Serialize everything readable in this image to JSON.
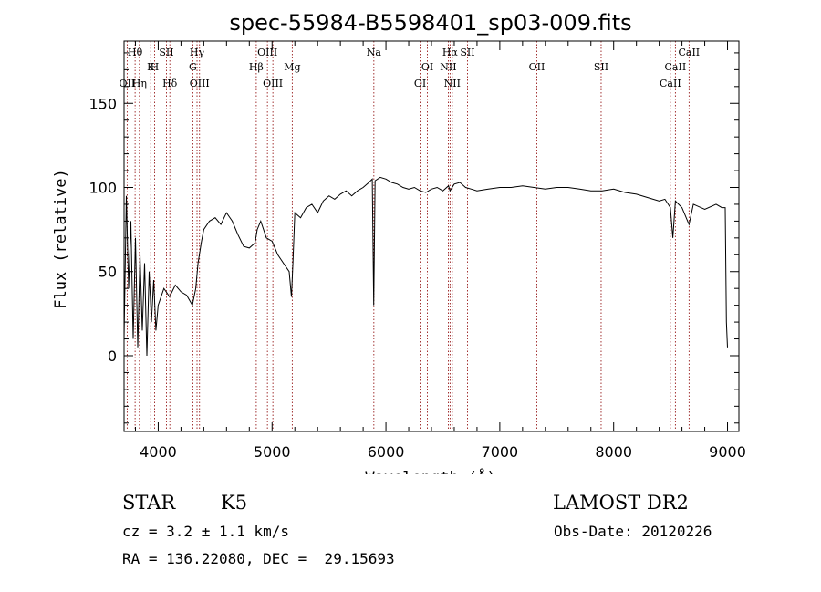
{
  "chart_data": {
    "type": "line",
    "title": "spec-55984-B5598401_sp03-009.fits",
    "xlabel": "Wavelength (Å)",
    "ylabel": "Flux (relative)",
    "xlim": [
      3700,
      9100
    ],
    "ylim": [
      -45,
      187
    ],
    "x_ticks": [
      4000,
      5000,
      6000,
      7000,
      8000,
      9000
    ],
    "y_ticks": [
      0,
      50,
      100,
      150
    ],
    "grid": false,
    "line_color": "#000000",
    "marker_color": "#8b0000",
    "series": [
      {
        "x": [
          3700,
          3720,
          3740,
          3760,
          3780,
          3800,
          3820,
          3840,
          3860,
          3880,
          3900,
          3920,
          3940,
          3960,
          3980,
          4000,
          4050,
          4100,
          4150,
          4200,
          4250,
          4300,
          4330,
          4350,
          4380,
          4400,
          4450,
          4500,
          4550,
          4600,
          4650,
          4700,
          4750,
          4800,
          4850,
          4870,
          4900,
          4950,
          5000,
          5050,
          5100,
          5150,
          5170,
          5183,
          5200,
          5250,
          5300,
          5350,
          5400,
          5450,
          5500,
          5550,
          5600,
          5650,
          5700,
          5750,
          5800,
          5850,
          5880,
          5893,
          5905,
          5950,
          6000,
          6050,
          6100,
          6150,
          6200,
          6250,
          6300,
          6350,
          6400,
          6450,
          6500,
          6550,
          6563,
          6600,
          6650,
          6700,
          6750,
          6800,
          6900,
          7000,
          7100,
          7200,
          7300,
          7400,
          7500,
          7600,
          7700,
          7800,
          7900,
          8000,
          8100,
          8200,
          8300,
          8400,
          8450,
          8498,
          8520,
          8542,
          8570,
          8600,
          8662,
          8700,
          8800,
          8900,
          8950,
          8980,
          8990,
          9000
        ],
        "y": [
          10,
          95,
          40,
          80,
          10,
          70,
          5,
          60,
          15,
          55,
          0,
          50,
          20,
          45,
          15,
          30,
          40,
          35,
          42,
          38,
          36,
          30,
          40,
          55,
          68,
          75,
          80,
          82,
          78,
          85,
          80,
          72,
          65,
          64,
          67,
          75,
          80,
          70,
          68,
          60,
          55,
          50,
          35,
          55,
          85,
          82,
          88,
          90,
          85,
          92,
          95,
          93,
          96,
          98,
          95,
          98,
          100,
          103,
          105,
          30,
          104,
          106,
          105,
          103,
          102,
          100,
          99,
          100,
          98,
          97,
          99,
          100,
          98,
          101,
          98,
          102,
          103,
          100,
          99,
          98,
          99,
          100,
          100,
          101,
          100,
          99,
          100,
          100,
          99,
          98,
          98,
          99,
          97,
          96,
          94,
          92,
          93,
          88,
          70,
          92,
          90,
          88,
          78,
          90,
          87,
          90,
          88,
          88,
          20,
          5
        ]
      }
    ],
    "lines": [
      {
        "wl": 3727,
        "label": "OII",
        "row": 3
      },
      {
        "wl": 3797,
        "label": "Hθ",
        "row": 1
      },
      {
        "wl": 3835,
        "label": "Hη",
        "row": 3
      },
      {
        "wl": 3934,
        "label": "K",
        "row": 0
      },
      {
        "wl": 3968,
        "label": "H",
        "row": 2
      },
      {
        "wl": 4072,
        "label": "SII",
        "row": 1
      },
      {
        "wl": 4102,
        "label": "Hδ",
        "row": 3
      },
      {
        "wl": 4304,
        "label": "G",
        "row": 2
      },
      {
        "wl": 4341,
        "label": "Hγ",
        "row": 1
      },
      {
        "wl": 4363,
        "label": "OIII",
        "row": 3
      },
      {
        "wl": 4861,
        "label": "Hβ",
        "row": 2
      },
      {
        "wl": 4959,
        "label": "OIII",
        "row": 1
      },
      {
        "wl": 5007,
        "label": "OIII",
        "row": 3
      },
      {
        "wl": 5177,
        "label": "Mg",
        "row": 2
      },
      {
        "wl": 5894,
        "label": "Na",
        "row": 1
      },
      {
        "wl": 6300,
        "label": "OI",
        "row": 3
      },
      {
        "wl": 6364,
        "label": "OI",
        "row": 2
      },
      {
        "wl": 6548,
        "label": "NII",
        "row": 0
      },
      {
        "wl": 6563,
        "label": "Hα",
        "row": 1
      },
      {
        "wl": 6583,
        "label": "NII",
        "row": 3
      },
      {
        "wl": 6716,
        "label": "SII",
        "row": 1
      },
      {
        "wl": 7325,
        "label": "OII",
        "row": 2
      },
      {
        "wl": 7890,
        "label": "SII",
        "row": 2
      },
      {
        "wl": 8498,
        "label": "CaII",
        "row": 3
      },
      {
        "wl": 8542,
        "label": "CaII",
        "row": 2
      },
      {
        "wl": 8662,
        "label": "CaII",
        "row": 1
      }
    ]
  },
  "info": {
    "object_class": "STAR",
    "subclass": "K5",
    "survey": "LAMOST DR2",
    "redshift": "cz = 3.2 ± 1.1 km/s",
    "obs_date": "Obs-Date: 20120226",
    "coords": "RA = 136.22080, DEC =  29.15693"
  }
}
